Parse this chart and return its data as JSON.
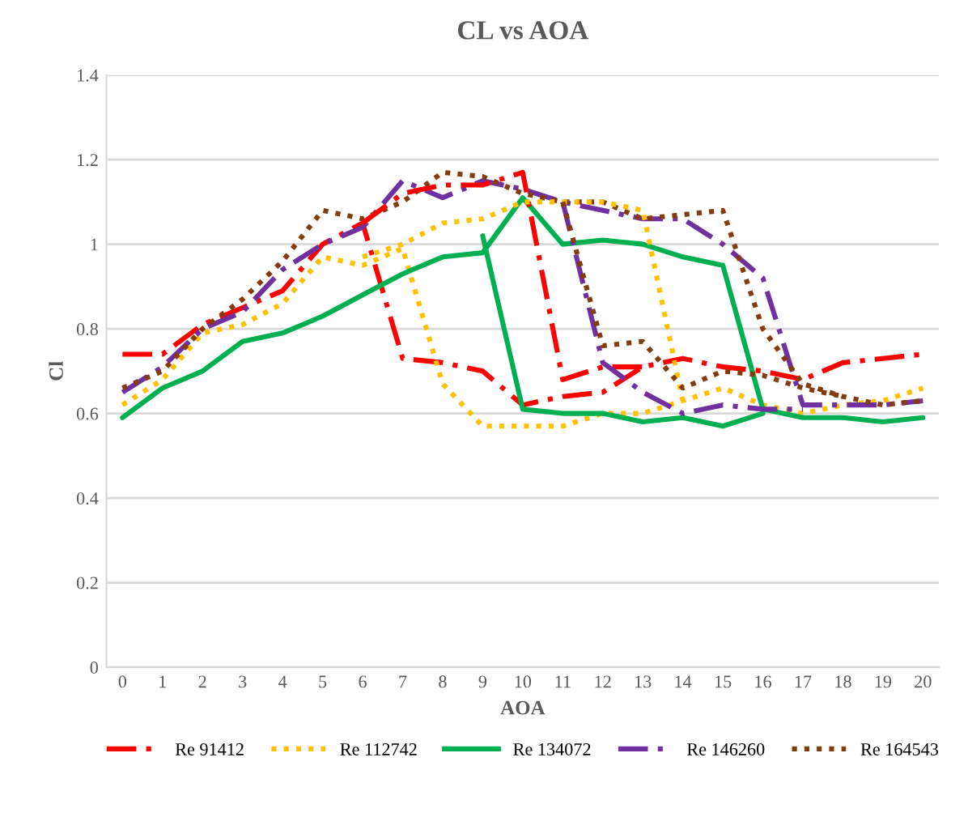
{
  "chart_data": {
    "type": "line",
    "title": "CL vs AOA",
    "xlabel": "AOA",
    "ylabel": "Cl",
    "xlim": [
      -0.4,
      20.4
    ],
    "xticks": [
      0,
      1,
      2,
      3,
      4,
      5,
      6,
      7,
      8,
      9,
      10,
      11,
      12,
      13,
      14,
      15,
      16,
      17,
      18,
      19,
      20
    ],
    "ylim": [
      0,
      1.4
    ],
    "yticks": [
      0,
      0.2,
      0.4,
      0.6,
      0.8,
      1,
      1.2,
      1.4
    ],
    "grid": "y",
    "legend": "bottom",
    "marker": "none",
    "series": [
      {
        "name": "Re 91412",
        "color": "#ff0000",
        "line_style": "dashed",
        "x": [
          0,
          1,
          2,
          3,
          4,
          5,
          6,
          7,
          8,
          9,
          10,
          11,
          12,
          13,
          14,
          15,
          16,
          17,
          18,
          19,
          20
        ],
        "values": [
          0.74,
          0.74,
          0.81,
          0.85,
          0.89,
          1.0,
          1.05,
          0.73,
          0.72,
          0.7,
          0.62,
          0.64,
          0.65,
          0.71,
          0.73,
          0.71,
          0.7,
          0.68,
          0.72,
          0.73,
          0.74
        ]
      },
      {
        "name": "Re 112742",
        "color": "#ffc000",
        "line_style": "dotted",
        "x": [
          0,
          1,
          2,
          3,
          4,
          5,
          6,
          7,
          8,
          9,
          10,
          11,
          12,
          13,
          14,
          15,
          16,
          17,
          18,
          19,
          20
        ],
        "values": [
          0.62,
          0.68,
          0.79,
          0.81,
          0.86,
          0.97,
          0.95,
          0.99,
          0.67,
          0.57,
          0.57,
          0.57,
          0.6,
          0.6,
          0.63,
          0.66,
          0.62,
          0.6,
          0.62,
          0.63,
          0.66
        ]
      },
      {
        "name": "Re 134072",
        "color": "#00b050",
        "line_style": "solid",
        "x": [
          0,
          1,
          2,
          3,
          4,
          5,
          6,
          7,
          8,
          9,
          10,
          11,
          12,
          13,
          14,
          15,
          16,
          17,
          18,
          19,
          20
        ],
        "values": [
          0.59,
          0.66,
          0.7,
          0.77,
          0.79,
          0.83,
          0.88,
          0.93,
          0.97,
          0.98,
          1.11,
          1.0,
          1.01,
          1.0,
          0.97,
          0.95,
          0.61,
          0.59,
          0.59,
          0.58,
          0.59
        ]
      },
      {
        "name": "Re 146260",
        "color": "#7030a0",
        "line_style": "dashed",
        "x": [
          0,
          1,
          2,
          3,
          4,
          5,
          6,
          7,
          8,
          9,
          10,
          11,
          12,
          13,
          14,
          15,
          16,
          17,
          18,
          19,
          20
        ],
        "values": [
          0.65,
          0.71,
          0.8,
          0.84,
          0.94,
          1.0,
          1.04,
          1.15,
          1.11,
          1.15,
          1.13,
          1.1,
          1.08,
          1.06,
          1.06,
          1.0,
          0.92,
          0.62,
          0.62,
          0.62,
          0.63
        ]
      },
      {
        "name": "Re 164543",
        "color": "#843c0c",
        "line_style": "dotted",
        "x": [
          0,
          1,
          2,
          3,
          4,
          5,
          6,
          7,
          8,
          9,
          10,
          11,
          12,
          13,
          14,
          15,
          16,
          17,
          18,
          19,
          20
        ],
        "values": [
          0.66,
          0.7,
          0.8,
          0.87,
          0.96,
          1.08,
          1.06,
          1.1,
          1.17,
          1.16,
          1.12,
          1.1,
          1.1,
          1.06,
          1.07,
          1.08,
          0.8,
          0.67,
          0.64,
          0.62,
          0.63
        ]
      },
      {
        "color": "#ff0000",
        "line_style": "dashed",
        "x": [
          6,
          7,
          8,
          9,
          10,
          11,
          12,
          13
        ],
        "values": [
          1.05,
          1.12,
          1.14,
          1.14,
          1.17,
          0.68,
          0.71,
          0.71
        ]
      },
      {
        "color": "#ffc000",
        "line_style": "dotted",
        "x": [
          6,
          7,
          8,
          9,
          10,
          11,
          12,
          13,
          14
        ],
        "values": [
          0.97,
          1.0,
          1.05,
          1.06,
          1.1,
          1.1,
          1.1,
          1.08,
          0.63
        ]
      },
      {
        "color": "#00b050",
        "line_style": "solid",
        "x": [
          9,
          10,
          11,
          12,
          13,
          14,
          15,
          16
        ],
        "values": [
          1.02,
          0.61,
          0.6,
          0.6,
          0.58,
          0.59,
          0.57,
          0.6
        ]
      },
      {
        "color": "#7030a0",
        "line_style": "dashed",
        "x": [
          11,
          12,
          13,
          14,
          15,
          16,
          17
        ],
        "values": [
          1.1,
          0.72,
          0.65,
          0.6,
          0.62,
          0.61,
          0.61
        ]
      },
      {
        "color": "#843c0c",
        "line_style": "dotted",
        "x": [
          11,
          12,
          13,
          14,
          15,
          16,
          17,
          18
        ],
        "values": [
          1.1,
          0.76,
          0.77,
          0.66,
          0.7,
          0.69,
          0.66,
          0.64
        ]
      }
    ]
  }
}
